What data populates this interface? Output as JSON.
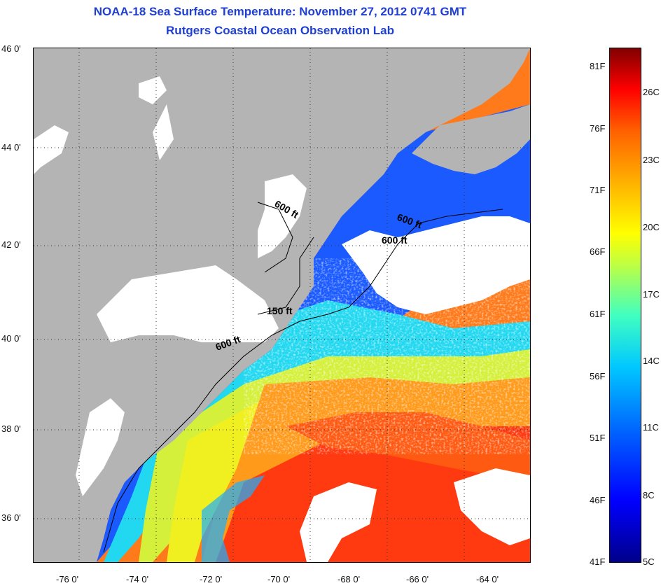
{
  "title": "NOAA-18 Sea Surface Temperature:  November 27, 2012 0741 GMT",
  "subtitle": "Rutgers Coastal Ocean Observation Lab",
  "lat_ticks": [
    "46 0'",
    "44 0'",
    "42 0'",
    "40 0'",
    "38 0'",
    "36 0'"
  ],
  "lon_ticks": [
    "-76 0'",
    "-74 0'",
    "-72 0'",
    "-70 0'",
    "-68 0'",
    "-66 0'",
    "-64 0'"
  ],
  "colorbar": {
    "fahrenheit": [
      "81F",
      "76F",
      "71F",
      "66F",
      "61F",
      "56F",
      "51F",
      "46F",
      "41F"
    ],
    "celsius": [
      "26C",
      "23C",
      "20C",
      "17C",
      "14C",
      "11C",
      "8C",
      "5C"
    ]
  },
  "contours": [
    "600 ft",
    "600 ft",
    "600 ft",
    "150 ft",
    "600 ft"
  ],
  "colors": {
    "land": "#b4b4b4",
    "cloud": "#ffffff",
    "title": "#1f3fd0"
  }
}
